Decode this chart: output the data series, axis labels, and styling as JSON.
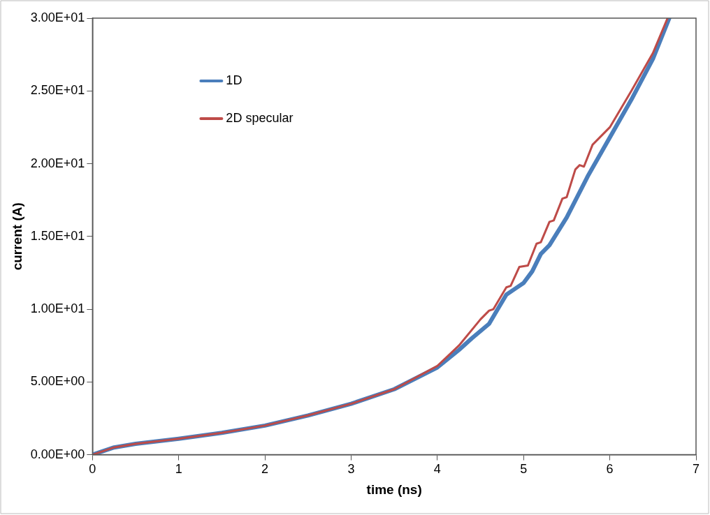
{
  "chart_data": {
    "type": "line",
    "xlabel": "time (ns)",
    "ylabel": "current (A)",
    "xlim": [
      0,
      7
    ],
    "xticks": [
      0,
      1,
      2,
      3,
      4,
      5,
      6,
      7
    ],
    "ylim": [
      0,
      30
    ],
    "yticks": [
      {
        "value": 0,
        "label": "0.00E+00"
      },
      {
        "value": 5,
        "label": "5.00E+00"
      },
      {
        "value": 10,
        "label": "1.00E+01"
      },
      {
        "value": 15,
        "label": "1.50E+01"
      },
      {
        "value": 20,
        "label": "2.00E+01"
      },
      {
        "value": 25,
        "label": "2.50E+01"
      },
      {
        "value": 30,
        "label": "3.00E+01"
      }
    ],
    "grid": false,
    "legend": "top left",
    "marker": "none",
    "line_style": "solid",
    "series": [
      {
        "name": "1D",
        "color": "#4a7ebb",
        "x": [
          0,
          0.25,
          0.5,
          1,
          1.5,
          2,
          2.5,
          3,
          3.5,
          4,
          4.25,
          4.4,
          4.6,
          4.7,
          4.8,
          4.9,
          5,
          5.1,
          5.2,
          5.3,
          5.5,
          5.75,
          6,
          6.25,
          6.5,
          6.69
        ],
        "values": [
          0,
          0.5,
          0.75,
          1.1,
          1.5,
          2,
          2.7,
          3.5,
          4.5,
          6,
          7.2,
          8,
          9,
          10,
          11,
          11.4,
          11.8,
          12.6,
          13.8,
          14.4,
          16.3,
          19.2,
          21.8,
          24.4,
          27.2,
          30
        ]
      },
      {
        "name": "2D specular",
        "color": "#be4b48",
        "x": [
          0,
          0.25,
          0.5,
          1,
          1.5,
          2,
          2.5,
          3,
          3.5,
          4,
          4.25,
          4.5,
          4.6,
          4.65,
          4.8,
          4.85,
          4.95,
          5.05,
          5.15,
          5.2,
          5.3,
          5.35,
          5.45,
          5.5,
          5.6,
          5.65,
          5.7,
          5.8,
          6,
          6.25,
          6.5,
          6.67
        ],
        "values": [
          0,
          0.5,
          0.75,
          1.1,
          1.5,
          2,
          2.7,
          3.5,
          4.5,
          6.1,
          7.5,
          9.3,
          9.9,
          10,
          11.5,
          11.6,
          12.9,
          13,
          14.5,
          14.6,
          16,
          16.1,
          17.6,
          17.7,
          19.6,
          19.9,
          19.8,
          21.3,
          22.5,
          25,
          27.6,
          30
        ]
      }
    ]
  }
}
